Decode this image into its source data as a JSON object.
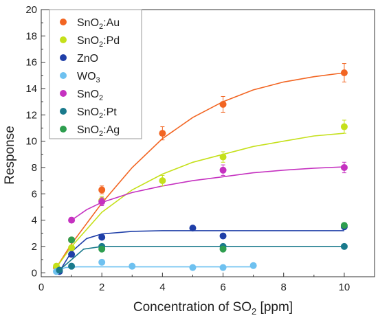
{
  "chart_data": {
    "type": "scatter",
    "xlabel": "Concentration of SO",
    "xlabel_sub": "2",
    "xlabel_unit": " [ppm]",
    "ylabel": "Response",
    "xlim": [
      0,
      11
    ],
    "ylim": [
      -0.3,
      20
    ],
    "xticks": [
      0,
      2,
      4,
      6,
      8,
      10
    ],
    "yticks": [
      0,
      2,
      4,
      6,
      8,
      10,
      12,
      14,
      16,
      18,
      20
    ],
    "grid": false,
    "legend_position": "top-left",
    "series": [
      {
        "name": "SnO",
        "sub": "2",
        "suffix": ":Au",
        "color": "#f26522",
        "points": [
          [
            0.5,
            0.4
          ],
          [
            1,
            2.5
          ],
          [
            2,
            6.3
          ],
          [
            4,
            10.6
          ],
          [
            6,
            12.8
          ],
          [
            10,
            15.2
          ]
        ],
        "errors": [
          0.1,
          0.2,
          0.3,
          0.5,
          0.6,
          0.7
        ]
      },
      {
        "name": "SnO",
        "sub": "2",
        "suffix": ":Pd",
        "color": "#c5e01a",
        "points": [
          [
            0.5,
            0.5
          ],
          [
            1,
            1.9
          ],
          [
            2,
            5.5
          ],
          [
            4,
            7.0
          ],
          [
            6,
            8.8
          ],
          [
            10,
            11.1
          ]
        ],
        "errors": [
          0.1,
          0.2,
          0.3,
          0.4,
          0.4,
          0.5
        ]
      },
      {
        "name": "ZnO",
        "sub": "",
        "suffix": "",
        "color": "#1f3fa8",
        "points": [
          [
            0.6,
            0.1
          ],
          [
            1,
            1.4
          ],
          [
            2,
            2.7
          ],
          [
            5,
            3.4
          ],
          [
            6,
            2.8
          ],
          [
            10,
            3.5
          ]
        ],
        "errors": [
          0.05,
          0.1,
          0.1,
          0.15,
          0.15,
          0.15
        ]
      },
      {
        "name": "WO",
        "sub": "3",
        "suffix": "",
        "color": "#6ec1f0",
        "points": [
          [
            0.5,
            0.1
          ],
          [
            1,
            0.5
          ],
          [
            2,
            0.8
          ],
          [
            3,
            0.5
          ],
          [
            5,
            0.4
          ],
          [
            6,
            0.4
          ],
          [
            7,
            0.55
          ]
        ],
        "errors": [
          0.05,
          0.05,
          0.05,
          0.05,
          0.05,
          0.05,
          0.05
        ]
      },
      {
        "name": "SnO",
        "sub": "2",
        "suffix": "",
        "color": "#c531c0",
        "points": [
          [
            1,
            4.0
          ],
          [
            2,
            5.4
          ],
          [
            6,
            7.8
          ],
          [
            10,
            8.0
          ]
        ],
        "errors": [
          0.2,
          0.3,
          0.4,
          0.4
        ]
      },
      {
        "name": "SnO",
        "sub": "2",
        "suffix": ":Pt",
        "color": "#1a7a8c",
        "points": [
          [
            0.6,
            0.2
          ],
          [
            1,
            0.5
          ],
          [
            2,
            2.0
          ],
          [
            6,
            2.0
          ],
          [
            10,
            2.0
          ]
        ],
        "errors": [
          0.05,
          0.05,
          0.1,
          0.1,
          0.1
        ]
      },
      {
        "name": "SnO",
        "sub": "2",
        "suffix": ":Ag",
        "color": "#2e9e4f",
        "points": [
          [
            1,
            2.5
          ],
          [
            2,
            1.8
          ],
          [
            6,
            1.8
          ],
          [
            10,
            3.6
          ]
        ],
        "errors": [
          0.1,
          0.1,
          0.1,
          0.15
        ]
      }
    ],
    "fits": [
      {
        "color": "#f26522",
        "curve": [
          [
            0.5,
            0.4
          ],
          [
            1,
            2.2
          ],
          [
            2,
            5.3
          ],
          [
            3,
            8.0
          ],
          [
            4,
            10.2
          ],
          [
            5,
            11.8
          ],
          [
            6,
            13.0
          ],
          [
            7,
            13.9
          ],
          [
            8,
            14.5
          ],
          [
            9,
            14.9
          ],
          [
            10,
            15.2
          ]
        ]
      },
      {
        "color": "#c5e01a",
        "curve": [
          [
            0.5,
            0.4
          ],
          [
            1,
            2.0
          ],
          [
            2,
            4.6
          ],
          [
            3,
            6.3
          ],
          [
            4,
            7.5
          ],
          [
            5,
            8.4
          ],
          [
            6,
            9.0
          ],
          [
            7,
            9.6
          ],
          [
            8,
            10.0
          ],
          [
            9,
            10.4
          ],
          [
            10,
            10.6
          ]
        ]
      },
      {
        "color": "#1f3fa8",
        "curve": [
          [
            0.6,
            0.1
          ],
          [
            1,
            1.6
          ],
          [
            1.5,
            2.6
          ],
          [
            2,
            2.95
          ],
          [
            3,
            3.15
          ],
          [
            4,
            3.2
          ],
          [
            10,
            3.2
          ]
        ]
      },
      {
        "color": "#6ec1f0",
        "curve": [
          [
            0.5,
            0.1
          ],
          [
            0.8,
            0.4
          ],
          [
            1.2,
            0.45
          ],
          [
            7,
            0.45
          ]
        ]
      },
      {
        "color": "#c531c0",
        "curve": [
          [
            1,
            4.0
          ],
          [
            1.5,
            4.8
          ],
          [
            2,
            5.35
          ],
          [
            3,
            6.1
          ],
          [
            4,
            6.6
          ],
          [
            5,
            7.0
          ],
          [
            6,
            7.3
          ],
          [
            7,
            7.6
          ],
          [
            8,
            7.8
          ],
          [
            9,
            7.95
          ],
          [
            10,
            8.05
          ]
        ]
      },
      {
        "color": "#1a7a8c",
        "curve": [
          [
            0.6,
            0.2
          ],
          [
            1,
            1.0
          ],
          [
            1.4,
            1.8
          ],
          [
            2,
            2.0
          ],
          [
            10,
            2.0
          ]
        ]
      }
    ]
  }
}
